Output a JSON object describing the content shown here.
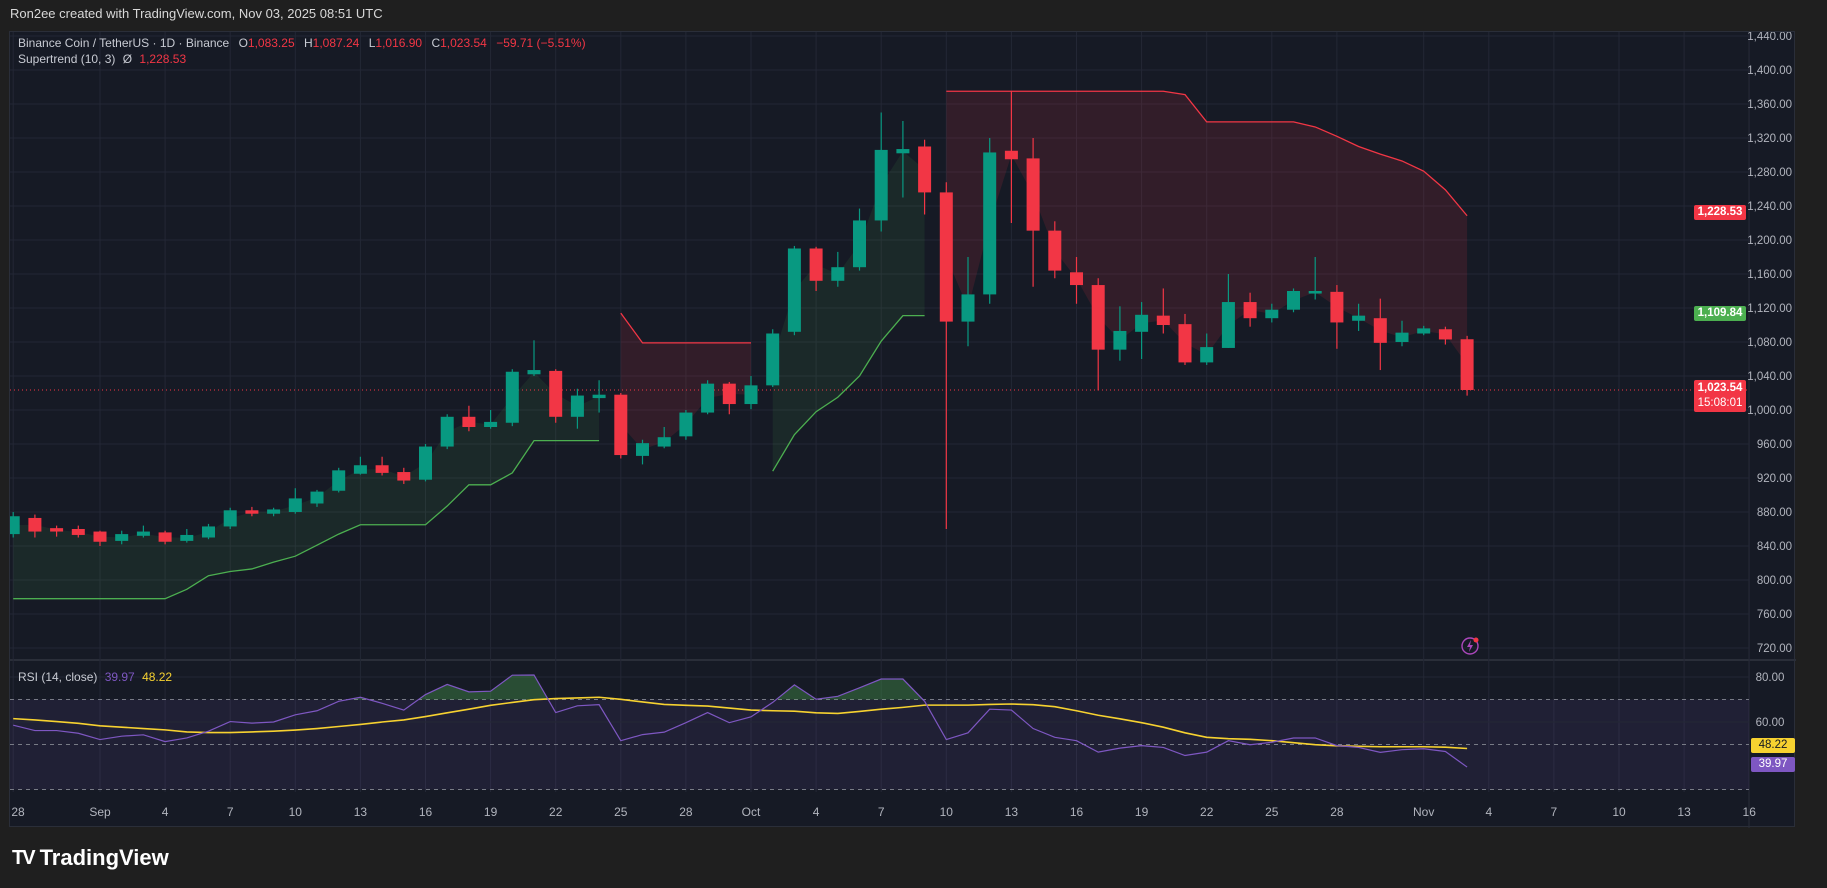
{
  "header": {
    "credit": "Ron2ee created with TradingView.com, Nov 03, 2025 08:51 UTC"
  },
  "legend": {
    "symbol": "Binance Coin / TetherUS · 1D · Binance",
    "o_label": "O",
    "o": "1,083.25",
    "h_label": "H",
    "h": "1,087.24",
    "l_label": "L",
    "l": "1,016.90",
    "c_label": "C",
    "c": "1,023.54",
    "change": "−59.71 (−5.51%)",
    "supertrend_label": "Supertrend (10, 3)",
    "supertrend_symbol": "Ø",
    "supertrend_value": "1,228.53",
    "rsi_label": "RSI (14, close)",
    "rsi_value": "39.97",
    "rsi_ma_value": "48.22"
  },
  "badges": {
    "supertrend": "1,228.53",
    "green_level": "1,109.84",
    "last_price": "1,023.54",
    "countdown": "15:08:01",
    "rsi_ma": "48.22",
    "rsi": "39.97"
  },
  "colors": {
    "up": "#089981",
    "down": "#f23645",
    "rsi": "#7e57c2",
    "rsi_ma": "#f7d230",
    "background": "#161a25",
    "grid": "#232735"
  },
  "footer": {
    "brand": "TradingView",
    "logo_glyph": "TV"
  },
  "icons": {
    "alert": "lightning-alert-icon"
  },
  "chart_data": [
    {
      "type": "candlestick",
      "title": "Binance Coin / TetherUS · 1D · Binance",
      "ylim": [
        700,
        1450
      ],
      "y_ticks": [
        "1,440.00",
        "1,400.00",
        "1,360.00",
        "1,320.00",
        "1,280.00",
        "1,240.00",
        "1,200.00",
        "1,160.00",
        "1,120.00",
        "1,080.00",
        "1,040.00",
        "1,000.00",
        "960.00",
        "920.00",
        "880.00",
        "840.00",
        "800.00",
        "760.00",
        "720.00"
      ],
      "x_ticks": [
        "28",
        "Sep",
        "4",
        "7",
        "10",
        "13",
        "16",
        "19",
        "22",
        "25",
        "28",
        "Oct",
        "4",
        "7",
        "10",
        "13",
        "16",
        "19",
        "22",
        "25",
        "28",
        "Nov",
        "4",
        "7",
        "10",
        "13",
        "16"
      ],
      "grid": true,
      "last_price": 1023.54,
      "dates": [
        "2025-08-28",
        "2025-08-29",
        "2025-08-30",
        "2025-08-31",
        "2025-09-01",
        "2025-09-02",
        "2025-09-03",
        "2025-09-04",
        "2025-09-05",
        "2025-09-06",
        "2025-09-07",
        "2025-09-08",
        "2025-09-09",
        "2025-09-10",
        "2025-09-11",
        "2025-09-12",
        "2025-09-13",
        "2025-09-14",
        "2025-09-15",
        "2025-09-16",
        "2025-09-17",
        "2025-09-18",
        "2025-09-19",
        "2025-09-20",
        "2025-09-21",
        "2025-09-22",
        "2025-09-23",
        "2025-09-24",
        "2025-09-25",
        "2025-09-26",
        "2025-09-27",
        "2025-09-28",
        "2025-09-29",
        "2025-09-30",
        "2025-10-01",
        "2025-10-02",
        "2025-10-03",
        "2025-10-04",
        "2025-10-05",
        "2025-10-06",
        "2025-10-07",
        "2025-10-08",
        "2025-10-09",
        "2025-10-10",
        "2025-10-11",
        "2025-10-12",
        "2025-10-13",
        "2025-10-14",
        "2025-10-15",
        "2025-10-16",
        "2025-10-17",
        "2025-10-18",
        "2025-10-19",
        "2025-10-20",
        "2025-10-21",
        "2025-10-22",
        "2025-10-23",
        "2025-10-24",
        "2025-10-25",
        "2025-10-26",
        "2025-10-27",
        "2025-10-28",
        "2025-10-29",
        "2025-10-30",
        "2025-10-31",
        "2025-11-01",
        "2025-11-02",
        "2025-11-03"
      ],
      "ohlc": [
        [
          854,
          880,
          850,
          875
        ],
        [
          873,
          877,
          850,
          857
        ],
        [
          861,
          864,
          851,
          857
        ],
        [
          860,
          864,
          850,
          853
        ],
        [
          857,
          858,
          840,
          845
        ],
        [
          846,
          858,
          842,
          854
        ],
        [
          852,
          864,
          850,
          857
        ],
        [
          856,
          858,
          842,
          845
        ],
        [
          846,
          860,
          844,
          853
        ],
        [
          850,
          866,
          848,
          863
        ],
        [
          863,
          885,
          860,
          882
        ],
        [
          882,
          886,
          875,
          878
        ],
        [
          878,
          885,
          875,
          883
        ],
        [
          880,
          908,
          878,
          896
        ],
        [
          890,
          906,
          886,
          904
        ],
        [
          905,
          932,
          903,
          929
        ],
        [
          925,
          945,
          924,
          935
        ],
        [
          935,
          945,
          923,
          926
        ],
        [
          927,
          932,
          913,
          917
        ],
        [
          918,
          960,
          916,
          957
        ],
        [
          957,
          995,
          954,
          992
        ],
        [
          992,
          1005,
          975,
          980
        ],
        [
          980,
          1000,
          978,
          986
        ],
        [
          985,
          1048,
          981,
          1045
        ],
        [
          1042,
          1082,
          1040,
          1047
        ],
        [
          1046,
          1048,
          985,
          992
        ],
        [
          992,
          1025,
          978,
          1017
        ],
        [
          1014,
          1035,
          997,
          1018
        ],
        [
          1018,
          1020,
          943,
          947
        ],
        [
          946,
          965,
          936,
          961
        ],
        [
          957,
          980,
          955,
          968
        ],
        [
          969,
          1000,
          965,
          997
        ],
        [
          997,
          1035,
          995,
          1031
        ],
        [
          1031,
          1033,
          995,
          1007
        ],
        [
          1007,
          1040,
          1001,
          1029
        ],
        [
          1029,
          1095,
          1027,
          1090
        ],
        [
          1092,
          1193,
          1088,
          1190
        ],
        [
          1190,
          1192,
          1140,
          1152
        ],
        [
          1152,
          1186,
          1145,
          1168
        ],
        [
          1168,
          1237,
          1164,
          1223
        ],
        [
          1223,
          1350,
          1210,
          1306
        ],
        [
          1302,
          1340,
          1250,
          1307
        ],
        [
          1310,
          1318,
          1230,
          1256
        ],
        [
          1256,
          1268,
          860,
          1104
        ],
        [
          1104,
          1180,
          1075,
          1136
        ],
        [
          1136,
          1320,
          1125,
          1303
        ],
        [
          1305,
          1375,
          1220,
          1295
        ],
        [
          1296,
          1320,
          1145,
          1211
        ],
        [
          1211,
          1222,
          1155,
          1164
        ],
        [
          1162,
          1180,
          1125,
          1147
        ],
        [
          1147,
          1155,
          1023,
          1071
        ],
        [
          1071,
          1122,
          1058,
          1093
        ],
        [
          1092,
          1127,
          1060,
          1112
        ],
        [
          1111,
          1143,
          1090,
          1100
        ],
        [
          1101,
          1113,
          1053,
          1056
        ],
        [
          1056,
          1090,
          1053,
          1074
        ],
        [
          1073,
          1160,
          1073,
          1127
        ],
        [
          1127,
          1138,
          1098,
          1108
        ],
        [
          1108,
          1125,
          1103,
          1118
        ],
        [
          1118,
          1143,
          1115,
          1140
        ],
        [
          1137,
          1180,
          1130,
          1140
        ],
        [
          1139,
          1147,
          1072,
          1103
        ],
        [
          1105,
          1125,
          1093,
          1111
        ],
        [
          1108,
          1131,
          1047,
          1079
        ],
        [
          1080,
          1105,
          1075,
          1091
        ],
        [
          1090,
          1099,
          1088,
          1096
        ],
        [
          1095,
          1098,
          1077,
          1083
        ],
        [
          1083.25,
          1087.24,
          1016.9,
          1023.54
        ]
      ],
      "supertrend": {
        "name": "Supertrend (10, 3)",
        "values": [
          778,
          778,
          778,
          778,
          778,
          778,
          778,
          778,
          789,
          805,
          810,
          813,
          821,
          828,
          841,
          854,
          865,
          865,
          865,
          865,
          887,
          912,
          912,
          926,
          964,
          964,
          964,
          964,
          1114,
          1079,
          1079,
          1079,
          1079,
          1079,
          1079,
          928,
          971,
          998,
          1015,
          1040,
          1081,
          1111,
          1111,
          1375,
          1375,
          1375,
          1375,
          1375,
          1375,
          1375,
          1375,
          1375,
          1375,
          1375,
          1371,
          1339,
          1339,
          1339,
          1339,
          1339,
          1333,
          1322,
          1310,
          1301,
          1293,
          1281,
          1259,
          1228.53
        ],
        "direction": [
          "up",
          "up",
          "up",
          "up",
          "up",
          "up",
          "up",
          "up",
          "up",
          "up",
          "up",
          "up",
          "up",
          "up",
          "up",
          "up",
          "up",
          "up",
          "up",
          "up",
          "up",
          "up",
          "up",
          "up",
          "up",
          "up",
          "up",
          "up",
          "down",
          "down",
          "down",
          "down",
          "down",
          "down",
          "down",
          "up",
          "up",
          "up",
          "up",
          "up",
          "up",
          "up",
          "up",
          "down",
          "down",
          "down",
          "down",
          "down",
          "down",
          "down",
          "down",
          "down",
          "down",
          "down",
          "down",
          "down",
          "down",
          "down",
          "down",
          "down",
          "down",
          "down",
          "down",
          "down",
          "down",
          "down",
          "down",
          "down"
        ]
      }
    },
    {
      "type": "line",
      "title": "RSI (14, close)",
      "ylim": [
        25,
        86
      ],
      "y_ticks": [
        "80.00",
        "60.00"
      ],
      "bands": [
        70,
        50,
        30
      ],
      "series": [
        {
          "name": "RSI",
          "values": [
            58.6,
            56.2,
            56.2,
            55,
            52.2,
            53.7,
            54.3,
            51.3,
            52.9,
            55.9,
            60.2,
            59.5,
            60,
            63.2,
            65,
            69.2,
            71,
            68.3,
            65.3,
            72.2,
            76.7,
            73.4,
            73.7,
            80.8,
            80.9,
            64.2,
            67.2,
            67.7,
            51.7,
            54.4,
            55.5,
            59.7,
            64.2,
            59.7,
            62.3,
            68.7,
            76.5,
            70.1,
            71.4,
            75.2,
            79.1,
            79.1,
            69.2,
            52.2,
            55.2,
            65.7,
            65.3,
            57.1,
            53.2,
            51.7,
            46.6,
            48.4,
            49.5,
            48.7,
            45.1,
            46.6,
            51.7,
            49.9,
            51,
            52.9,
            52.9,
            49.5,
            48.7,
            46.5,
            47.7,
            48.1,
            46.9,
            39.97
          ]
        },
        {
          "name": "RSI-based MA",
          "values": [
            61.5,
            60.9,
            60.2,
            59.4,
            58.3,
            57.7,
            57.1,
            56.5,
            55.6,
            55.3,
            55.3,
            55.6,
            55.9,
            56.4,
            57.1,
            58,
            58.9,
            60,
            60.9,
            62.4,
            64.1,
            65.7,
            67.4,
            68.7,
            69.9,
            70.4,
            70.7,
            71,
            70.1,
            68.9,
            67.8,
            67.4,
            67.1,
            66.2,
            65.3,
            65,
            64.8,
            64.1,
            63.8,
            64.7,
            65.7,
            66.5,
            67.5,
            67.5,
            67.5,
            67.8,
            68,
            67.7,
            66.8,
            65,
            63,
            61.4,
            59.7,
            57.7,
            55.2,
            53.2,
            52.6,
            52.3,
            51.7,
            50.8,
            49.9,
            49.4,
            49.2,
            49,
            49,
            49,
            48.8,
            48.22
          ]
        }
      ]
    }
  ]
}
